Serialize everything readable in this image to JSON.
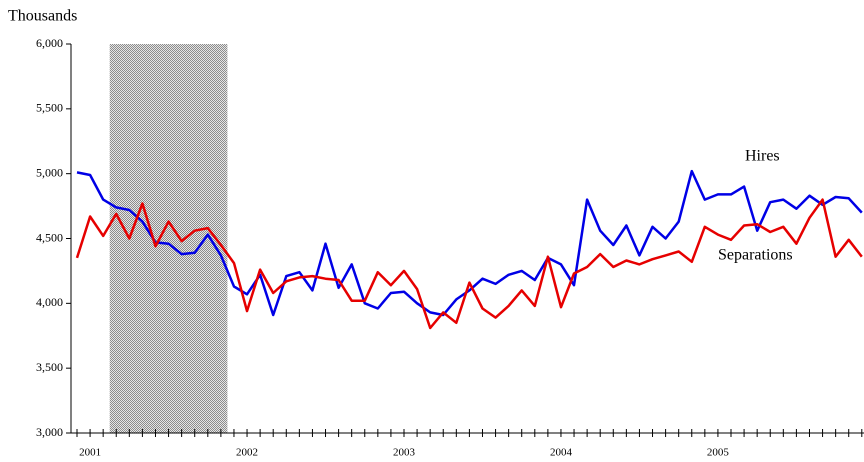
{
  "chart_data": {
    "type": "line",
    "y_label": "Thousands",
    "categories": [
      null,
      "2001",
      null,
      null,
      null,
      null,
      null,
      null,
      null,
      null,
      null,
      null,
      null,
      "2002",
      null,
      null,
      null,
      null,
      null,
      null,
      null,
      null,
      null,
      null,
      null,
      "2003",
      null,
      null,
      null,
      null,
      null,
      null,
      null,
      null,
      null,
      null,
      null,
      "2004",
      null,
      null,
      null,
      null,
      null,
      null,
      null,
      null,
      null,
      null,
      null,
      "2005",
      null,
      null,
      null,
      null,
      null,
      null,
      null,
      null,
      null,
      null,
      null
    ],
    "series": [
      {
        "name": "Hires",
        "color": "#0000e6",
        "values": [
          5010,
          4990,
          4800,
          4740,
          4720,
          4630,
          4470,
          4460,
          4380,
          4390,
          4530,
          4370,
          4130,
          4070,
          4220,
          3910,
          4210,
          4240,
          4100,
          4460,
          4120,
          4300,
          4000,
          3960,
          4080,
          4090,
          4000,
          3930,
          3910,
          4030,
          4100,
          4190,
          4150,
          4220,
          4250,
          4180,
          4350,
          4300,
          4140,
          4800,
          4560,
          4450,
          4600,
          4370,
          4590,
          4500,
          4630,
          5020,
          4800,
          4840,
          4840,
          4900,
          4560,
          4780,
          4800,
          4730,
          4830,
          4760,
          4820,
          4810,
          4700
        ]
      },
      {
        "name": "Separations",
        "color": "#e60000",
        "values": [
          4350,
          4670,
          4520,
          4690,
          4500,
          4770,
          4440,
          4630,
          4480,
          4560,
          4580,
          4450,
          4310,
          3940,
          4260,
          4080,
          4170,
          4200,
          4210,
          4190,
          4180,
          4020,
          4020,
          4240,
          4140,
          4250,
          4110,
          3810,
          3930,
          3850,
          4160,
          3960,
          3890,
          3980,
          4100,
          3980,
          4360,
          3970,
          4230,
          4280,
          4380,
          4280,
          4330,
          4300,
          4340,
          4370,
          4400,
          4320,
          4590,
          4530,
          4490,
          4600,
          4610,
          4550,
          4590,
          4460,
          4660,
          4800,
          4360,
          4490,
          4360
        ]
      }
    ],
    "ylim": [
      3000,
      6000
    ],
    "yticks": [
      {
        "value": 3000,
        "label": "3,000"
      },
      {
        "value": 3500,
        "label": "3,500"
      },
      {
        "value": 4000,
        "label": "4,000"
      },
      {
        "value": 4500,
        "label": "4,500"
      },
      {
        "value": 5000,
        "label": "5,000"
      },
      {
        "value": 5500,
        "label": "5,500"
      },
      {
        "value": 6000,
        "label": "6,000"
      }
    ],
    "shaded": {
      "from": 3,
      "to": 11,
      "color": "#b4b4b4"
    },
    "grid": false
  }
}
